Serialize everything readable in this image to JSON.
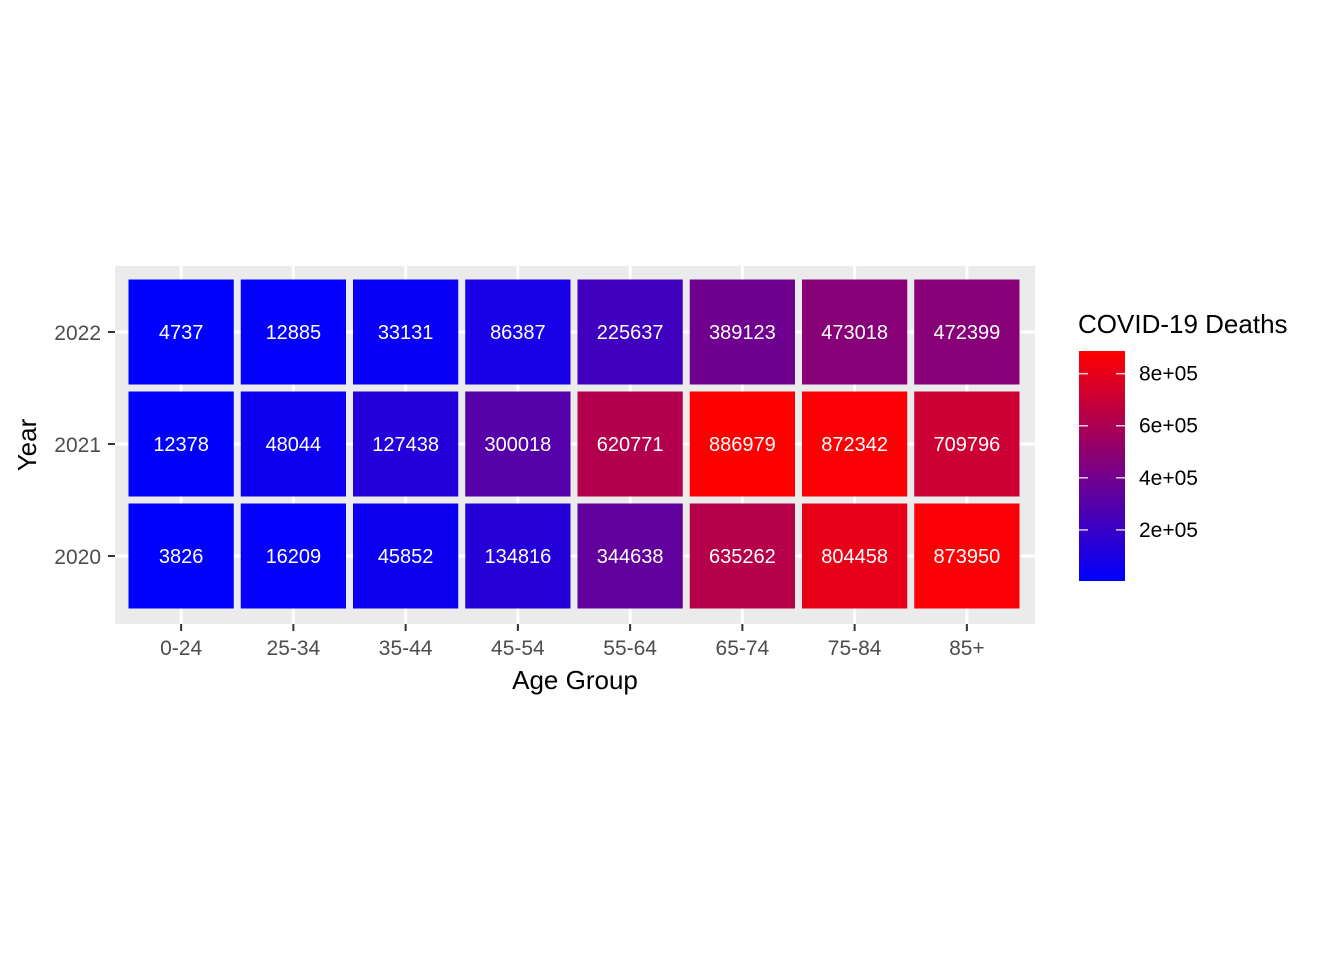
{
  "chart_data": {
    "type": "heatmap",
    "title": "",
    "xlabel": "Age Group",
    "ylabel": "Year",
    "x": [
      "0-24",
      "25-34",
      "35-44",
      "45-54",
      "55-64",
      "65-74",
      "75-84",
      "85+"
    ],
    "y": [
      "2020",
      "2021",
      "2022"
    ],
    "values": [
      [
        3826,
        16209,
        45852,
        134816,
        344638,
        635262,
        804458,
        873950
      ],
      [
        12378,
        48044,
        127438,
        300018,
        620771,
        886979,
        872342,
        709796
      ],
      [
        4737,
        12885,
        33131,
        86387,
        225637,
        389123,
        473018,
        472399
      ]
    ],
    "color_scale": {
      "low": "#0000ff",
      "high": "#ff0000",
      "min": 3826,
      "max": 886979
    },
    "legend": {
      "title": "COVID-19 Deaths",
      "placement": "right",
      "ticks": [
        200000,
        400000,
        600000,
        800000
      ],
      "tick_labels": [
        "2e+05",
        "4e+05",
        "6e+05",
        "8e+05"
      ]
    },
    "panel_background": "#ebebeb",
    "grid": true
  }
}
